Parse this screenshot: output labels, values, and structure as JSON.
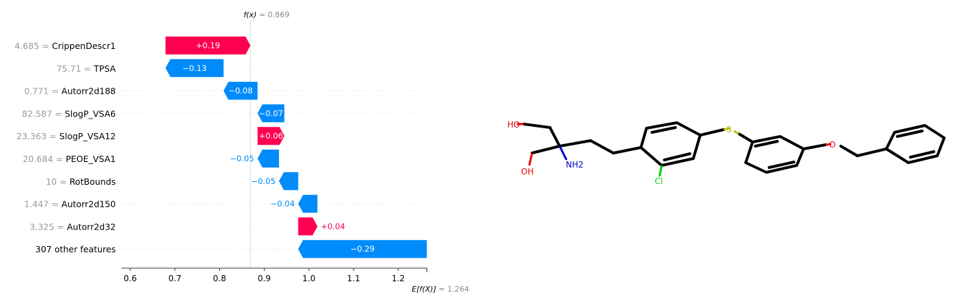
{
  "chart_data": {
    "type": "waterfall",
    "fx_label": "f(x)",
    "fx_value": "0.869",
    "expected_label": "E[f(X)]",
    "expected_value": "1.264",
    "xlim": [
      0.58,
      1.265
    ],
    "xticks": [
      "0.6",
      "0.7",
      "0.8",
      "0.9",
      "1.0",
      "1.1",
      "1.2"
    ],
    "tick_values": [
      0.6,
      0.7,
      0.8,
      0.9,
      1.0,
      1.1,
      1.2
    ],
    "colors": {
      "positive": "#ff0051",
      "negative": "#008bfb"
    },
    "features": [
      {
        "value": "4.685",
        "name": "CrippenDescr1",
        "label": "+0.19",
        "start": 0.679,
        "end": 0.869
      },
      {
        "value": "75.71",
        "name": "TPSA",
        "label": "−0.13",
        "start": 0.809,
        "end": 0.679
      },
      {
        "value": "0.771",
        "name": "Autorr2d188",
        "label": "−0.08",
        "start": 0.885,
        "end": 0.809
      },
      {
        "value": "82.587",
        "name": "SlogP_VSA6",
        "label": "−0.07",
        "start": 0.945,
        "end": 0.885
      },
      {
        "value": "23.363",
        "name": "SlogP_VSA12",
        "label": "+0.06",
        "start": 0.885,
        "end": 0.945
      },
      {
        "value": "20.684",
        "name": "PEOE_VSA1",
        "label": "−0.05",
        "start": 0.933,
        "end": 0.885
      },
      {
        "value": "10",
        "name": "RotBounds",
        "label": "−0.05",
        "start": 0.976,
        "end": 0.933
      },
      {
        "value": "1.447",
        "name": "Autorr2d150",
        "label": "−0.04",
        "start": 1.019,
        "end": 0.976
      },
      {
        "value": "3.325",
        "name": "Autorr2d32",
        "label": "+0.04",
        "start": 0.976,
        "end": 1.019
      },
      {
        "value": "",
        "name": "307 other features",
        "label": "−0.29",
        "start": 1.264,
        "end": 0.976
      }
    ]
  },
  "molecule": {
    "atoms": [
      "HO",
      "OH",
      "NH2",
      "S",
      "O",
      "Cl"
    ]
  }
}
